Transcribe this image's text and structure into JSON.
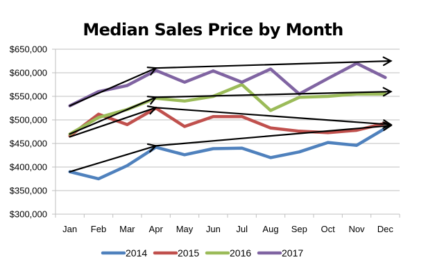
{
  "chart_data": {
    "type": "line",
    "title": "Median Sales Price by Month",
    "xlabel": "",
    "ylabel": "",
    "categories": [
      "Jan",
      "Feb",
      "Mar",
      "Apr",
      "May",
      "Jun",
      "Jul",
      "Aug",
      "Sep",
      "Oct",
      "Nov",
      "Dec"
    ],
    "ylim": [
      300000,
      650000
    ],
    "y_ticks": [
      300000,
      350000,
      400000,
      450000,
      500000,
      550000,
      600000,
      650000
    ],
    "y_tick_labels": [
      "$300,000",
      "$350,000",
      "$400,000",
      "$450,000",
      "$500,000",
      "$550,000",
      "$600,000",
      "$650,000"
    ],
    "grid": true,
    "legend_position": "bottom",
    "series": [
      {
        "name": "2014",
        "color": "#4F81BD",
        "values": [
          390000,
          375000,
          403000,
          442000,
          426000,
          439000,
          440000,
          420000,
          432000,
          452000,
          446000,
          482000
        ]
      },
      {
        "name": "2015",
        "color": "#C0504D",
        "values": [
          466000,
          512000,
          490000,
          525000,
          486000,
          507000,
          507000,
          483000,
          476000,
          473000,
          478000,
          493000
        ]
      },
      {
        "name": "2016",
        "color": "#9BBB59",
        "values": [
          470000,
          505000,
          522000,
          546000,
          540000,
          550000,
          575000,
          520000,
          548000,
          550000,
          555000,
          555000
        ]
      },
      {
        "name": "2017",
        "color": "#8064A2",
        "values": [
          530000,
          560000,
          573000,
          605000,
          580000,
          604000,
          580000,
          608000,
          555000,
          588000,
          620000,
          590000
        ]
      }
    ],
    "annotations": [
      {
        "type": "arrow",
        "series": "2017",
        "from": [
          "Jan",
          530000
        ],
        "to": [
          "Apr",
          610000
        ]
      },
      {
        "type": "arrow",
        "series": "2017",
        "from": [
          "Apr",
          610000
        ],
        "to": [
          "Dec",
          625000
        ]
      },
      {
        "type": "arrow",
        "series": "2016",
        "from": [
          "Jan",
          470000
        ],
        "to": [
          "Apr",
          548000
        ]
      },
      {
        "type": "arrow",
        "series": "2016",
        "from": [
          "Apr",
          548000
        ],
        "to": [
          "Dec",
          560000
        ]
      },
      {
        "type": "arrow",
        "series": "2015",
        "from": [
          "Jan",
          464000
        ],
        "to": [
          "Apr",
          526000
        ]
      },
      {
        "type": "arrow",
        "series": "2015",
        "from": [
          "Apr",
          526000
        ],
        "to": [
          "Dec",
          490000
        ]
      },
      {
        "type": "arrow",
        "series": "2014",
        "from": [
          "Jan",
          390000
        ],
        "to": [
          "Apr",
          445000
        ]
      },
      {
        "type": "arrow",
        "series": "2014",
        "from": [
          "Apr",
          445000
        ],
        "to": [
          "Dec",
          488000
        ]
      }
    ],
    "colors": {
      "gridline": "#BFBFBF",
      "axis": "#BFBFBF",
      "arrow": "#000000"
    }
  }
}
